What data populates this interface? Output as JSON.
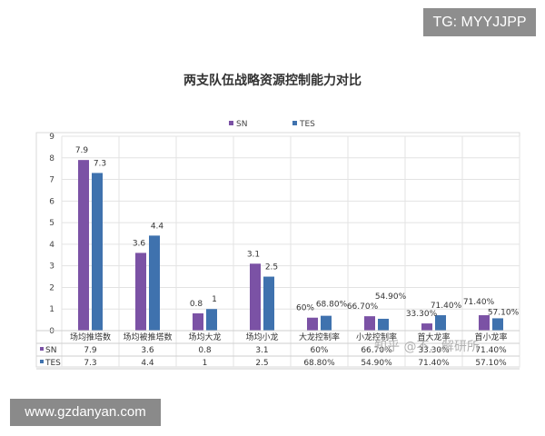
{
  "badges": {
    "top_right": "TG: MYYJJPP",
    "bottom_left": "www.gzdanyan.com"
  },
  "chart_data": {
    "type": "bar",
    "title": "两支队伍战略资源控制能力对比",
    "categories": [
      "场均推塔数",
      "场均被推塔数",
      "场均大龙",
      "场均小龙",
      "大龙控制率",
      "小龙控制率",
      "首大龙率",
      "首小龙率"
    ],
    "series": [
      {
        "name": "SN",
        "color": "#7b52a5",
        "values": [
          7.9,
          3.6,
          0.8,
          3.1,
          0.6,
          0.667,
          0.333,
          0.714
        ],
        "labels": [
          "7.9",
          "3.6",
          "0.8",
          "3.1",
          "60%",
          "66.70%",
          "33.30%",
          "71.40%"
        ]
      },
      {
        "name": "TES",
        "color": "#3f72ae",
        "values": [
          7.3,
          4.4,
          1,
          2.5,
          0.688,
          0.549,
          0.714,
          0.571
        ],
        "labels": [
          "7.3",
          "4.4",
          "1",
          "2.5",
          "68.80%",
          "54.90%",
          "71.40%",
          "57.10%"
        ]
      }
    ],
    "ylim": [
      0,
      9
    ],
    "yticks": [
      "0",
      "1",
      "2",
      "3",
      "4",
      "5",
      "6",
      "7",
      "8",
      "9"
    ],
    "grid": true,
    "legend_position": "top",
    "watermark": "知乎 @不...解研所"
  }
}
